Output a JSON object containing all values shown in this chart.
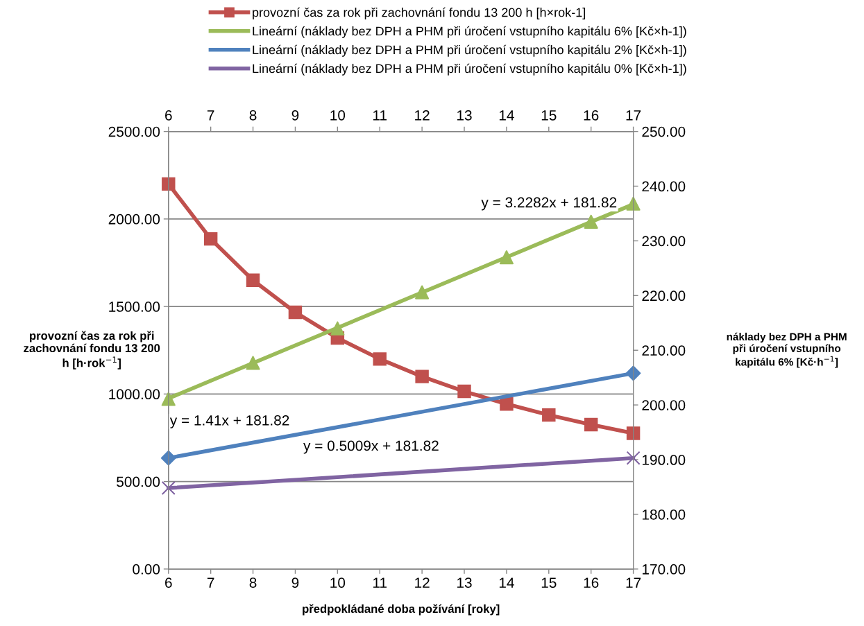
{
  "chart_data": {
    "type": "line",
    "xlabel": "předpokládané doba požívání [roky]",
    "ylabel": "provozní čas za rok při\nzachovnání fondu 13 200\nh [h·rok$^{−1}$]",
    "y2label": "náklady bez DPH a PHM\npři úročení vstupního\nkapitálu 6% [Kč·h$^{−1}$]",
    "xlim": [
      6,
      17
    ],
    "xticks": [
      6,
      7,
      8,
      9,
      10,
      11,
      12,
      13,
      14,
      15,
      16,
      17
    ],
    "x2lim": [
      6,
      17
    ],
    "x2ticks": [
      6,
      7,
      8,
      9,
      10,
      11,
      12,
      13,
      14,
      15,
      16,
      17
    ],
    "ylim": [
      0,
      2500
    ],
    "yticks": [
      {
        "value": 0,
        "label": "0.00"
      },
      {
        "value": 500,
        "label": "500.00"
      },
      {
        "value": 1000,
        "label": "1000.00"
      },
      {
        "value": 1500,
        "label": "1500.00"
      },
      {
        "value": 2000,
        "label": "2000.00"
      },
      {
        "value": 2500,
        "label": "2500.00"
      }
    ],
    "y2lim": [
      170,
      250
    ],
    "y2ticks": [
      {
        "value": 170,
        "label": "170.00"
      },
      {
        "value": 180,
        "label": "180.00"
      },
      {
        "value": 190,
        "label": "190.00"
      },
      {
        "value": 200,
        "label": "200.00"
      },
      {
        "value": 210,
        "label": "210.00"
      },
      {
        "value": 220,
        "label": "220.00"
      },
      {
        "value": 230,
        "label": "230.00"
      },
      {
        "value": 240,
        "label": "240.00"
      },
      {
        "value": 250,
        "label": "250.00"
      }
    ],
    "grid": "y",
    "legend": "top",
    "annotations": [
      "y = 3.2282x + 181.82",
      "y = 1.41x + 181.82",
      "y = 0.5009x + 181.82"
    ],
    "series": [
      {
        "name": "provozní čas za rok při zachovnání fondu 13 200 h [h×rok-1]",
        "color": "#c0504d",
        "marker": "square",
        "x": [
          6,
          7,
          8,
          9,
          10,
          11,
          12,
          13,
          14,
          15,
          16,
          17
        ],
        "values": [
          2200,
          1886,
          1650,
          1467,
          1320,
          1200,
          1100,
          1015,
          943,
          880,
          825,
          776
        ]
      },
      {
        "type": "scatter",
        "axis": "y2",
        "color": "#9bbb59",
        "marker": "triangle",
        "x": [
          6,
          8,
          10,
          12,
          14,
          16,
          17
        ],
        "values": [
          201.1,
          207.7,
          214.0,
          220.6,
          227.0,
          233.5,
          236.8
        ]
      },
      {
        "name": "Lineární (náklady bez DPH a PHM při úročení vstupního kapitálu 6% [Kč×h-1])",
        "axis": "y2",
        "color": "#9bbb59",
        "marker": "none",
        "x": [
          6,
          17
        ],
        "values": [
          201.2,
          236.7
        ]
      },
      {
        "type": "scatter",
        "axis": "y2",
        "color": "#4f81bd",
        "marker": "diamond",
        "x": [
          6,
          17
        ],
        "values": [
          190.3,
          205.8
        ]
      },
      {
        "name": "Lineární (náklady bez DPH a PHM při úročení vstupního kapitálu 2% [Kč×h-1])",
        "axis": "y2",
        "color": "#4f81bd",
        "marker": "none",
        "x": [
          6,
          17
        ],
        "values": [
          190.3,
          205.8
        ]
      },
      {
        "type": "scatter",
        "axis": "y2",
        "color": "#8064a2",
        "marker": "cross",
        "x": [
          6,
          17
        ],
        "values": [
          184.8,
          190.3
        ]
      },
      {
        "name": "Lineární (náklady bez DPH a PHM při úročení vstupního kapitálu 0% [Kč×h-1])",
        "axis": "y2",
        "color": "#8064a2",
        "marker": "none",
        "x": [
          6,
          17
        ],
        "values": [
          184.8,
          190.3
        ]
      }
    ]
  }
}
